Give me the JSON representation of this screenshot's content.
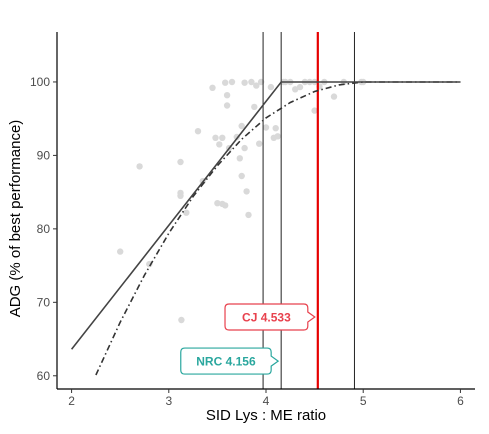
{
  "chart_data": {
    "type": "scatter",
    "title": "",
    "xlabel": "SID Lys : ME ratio",
    "ylabel": "ADG (% of best performance)",
    "xlim": [
      1.85,
      6.15
    ],
    "ylim": [
      58.2,
      106.8
    ],
    "xticks": [
      "2",
      "3",
      "4",
      "5",
      "6"
    ],
    "yticks": [
      "60",
      "70",
      "80",
      "90",
      "100"
    ],
    "grid": false,
    "legend": "none",
    "points_color": "#d9d9d9",
    "points": [
      [
        2.5,
        76.9
      ],
      [
        2.7,
        88.5
      ],
      [
        2.8,
        75.2
      ],
      [
        3.12,
        89.1
      ],
      [
        3.12,
        84.5
      ],
      [
        3.12,
        84.9
      ],
      [
        3.13,
        67.6
      ],
      [
        3.18,
        82.2
      ],
      [
        3.3,
        93.3
      ],
      [
        3.35,
        86.5
      ],
      [
        3.45,
        99.2
      ],
      [
        3.48,
        92.4
      ],
      [
        3.5,
        83.5
      ],
      [
        3.52,
        91.5
      ],
      [
        3.55,
        92.4
      ],
      [
        3.55,
        83.4
      ],
      [
        3.58,
        83.2
      ],
      [
        3.58,
        99.9
      ],
      [
        3.6,
        96.8
      ],
      [
        3.6,
        98.2
      ],
      [
        3.62,
        91.0
      ],
      [
        3.65,
        100.0
      ],
      [
        3.7,
        92.5
      ],
      [
        3.73,
        89.6
      ],
      [
        3.75,
        94.0
      ],
      [
        3.75,
        87.2
      ],
      [
        3.78,
        99.9
      ],
      [
        3.78,
        91.0
      ],
      [
        3.8,
        85.1
      ],
      [
        3.82,
        81.9
      ],
      [
        3.85,
        100.0
      ],
      [
        3.88,
        96.6
      ],
      [
        3.9,
        99.5
      ],
      [
        3.93,
        91.6
      ],
      [
        3.95,
        100.0
      ],
      [
        4.0,
        93.8
      ],
      [
        4.05,
        99.3
      ],
      [
        4.08,
        92.4
      ],
      [
        4.1,
        93.7
      ],
      [
        4.12,
        92.6
      ],
      [
        4.18,
        100.0
      ],
      [
        4.2,
        100.0
      ],
      [
        4.25,
        100.0
      ],
      [
        4.3,
        99.0
      ],
      [
        4.35,
        99.3
      ],
      [
        4.4,
        100.0
      ],
      [
        4.45,
        100.0
      ],
      [
        4.5,
        100.0
      ],
      [
        4.5,
        96.1
      ],
      [
        4.55,
        99.4
      ],
      [
        4.6,
        100.0
      ],
      [
        4.7,
        98.0
      ],
      [
        4.8,
        100.0
      ],
      [
        4.98,
        100.0
      ],
      [
        5.0,
        100.0
      ]
    ],
    "linear_plateau": {
      "color": "#444444",
      "points": [
        [
          2.0,
          63.6
        ],
        [
          4.156,
          100.0
        ],
        [
          6.0,
          100.0
        ]
      ]
    },
    "curvilinear_plateau": {
      "color": "#333333",
      "points": [
        [
          2.25,
          60.1
        ],
        [
          2.5,
          67.3
        ],
        [
          2.75,
          73.7
        ],
        [
          3.0,
          79.4
        ],
        [
          3.25,
          84.4
        ],
        [
          3.5,
          88.6
        ],
        [
          3.75,
          92.2
        ],
        [
          4.0,
          95.1
        ],
        [
          4.25,
          97.2
        ],
        [
          4.5,
          98.7
        ],
        [
          4.75,
          99.6
        ],
        [
          5.0,
          100.0
        ],
        [
          5.5,
          100.0
        ],
        [
          6.0,
          100.0
        ]
      ]
    },
    "reference_lines": [
      {
        "x": 3.97,
        "color": "#222222"
      },
      {
        "x": 4.156,
        "color": "#222222"
      },
      {
        "x": 4.533,
        "color": "#e60000"
      },
      {
        "x": 4.91,
        "color": "#222222"
      }
    ],
    "annotations": [
      {
        "label": "CJ 4.533",
        "x": 4.533,
        "y": 68.0,
        "color": "#e8414d"
      },
      {
        "label": "NRC 4.156",
        "x": 4.156,
        "y": 62.0,
        "color": "#2aa79e"
      }
    ]
  }
}
